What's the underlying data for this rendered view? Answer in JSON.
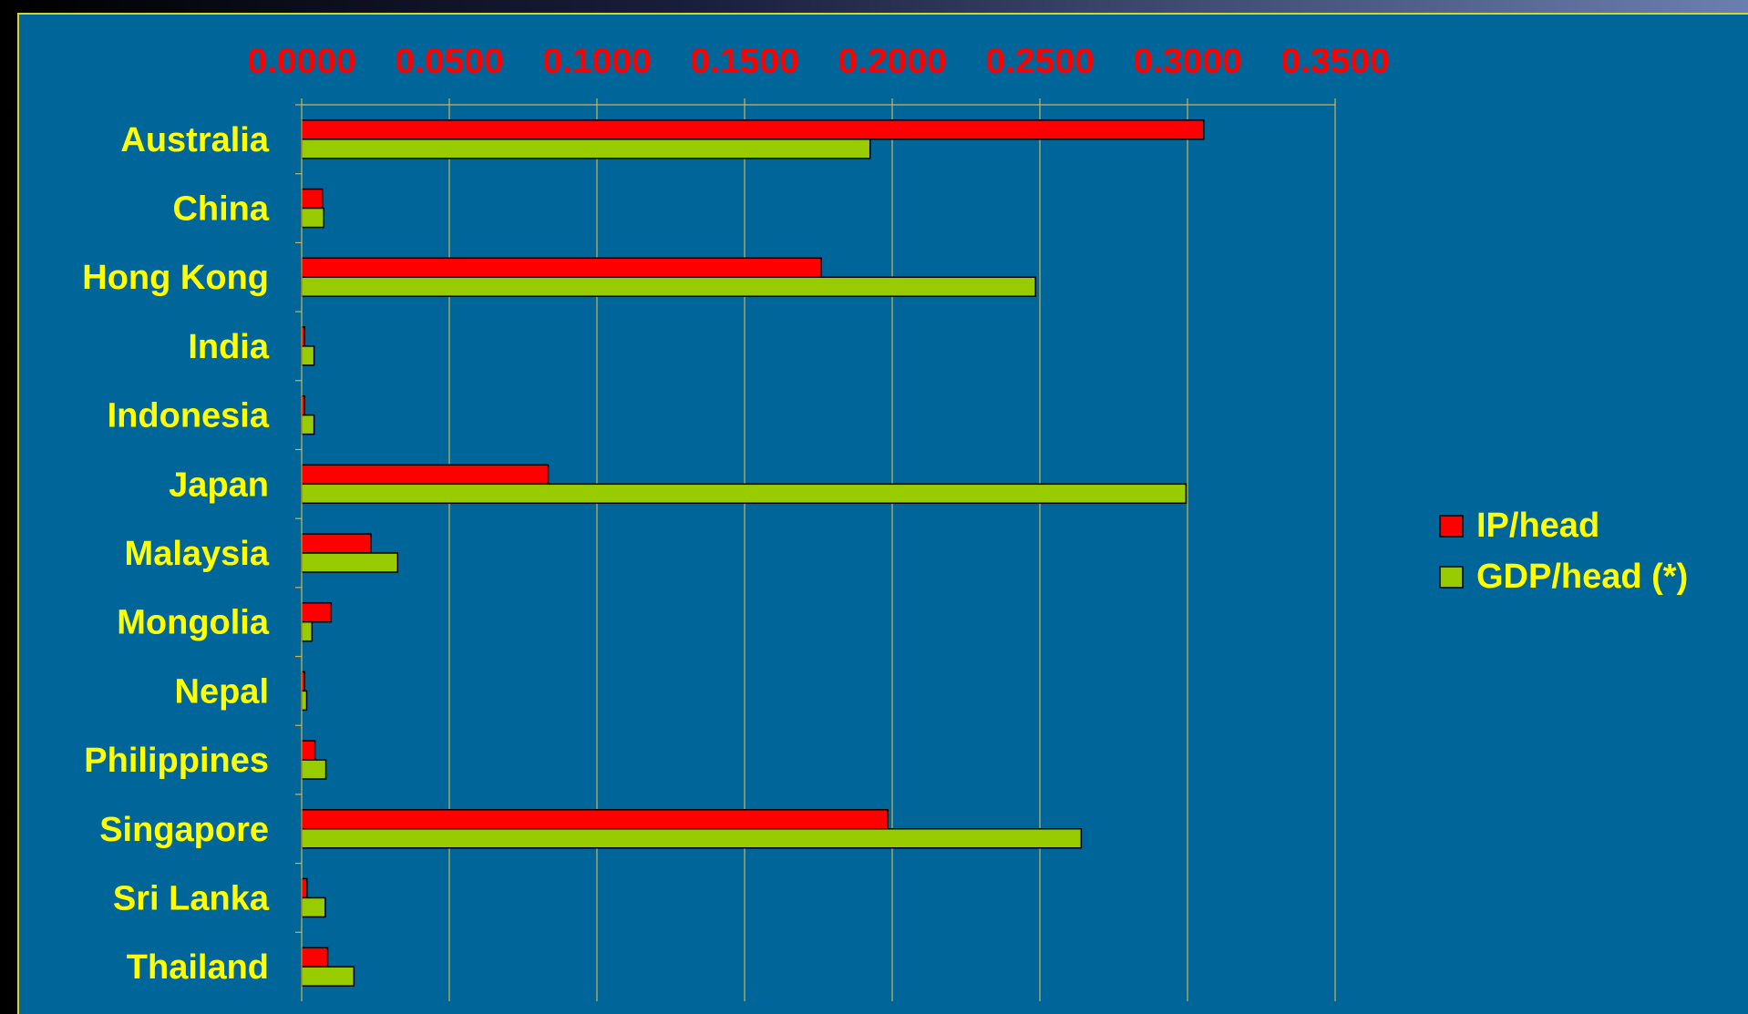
{
  "chart_data": {
    "type": "bar",
    "orientation": "horizontal",
    "categories": [
      "Australia",
      "China",
      "Hong Kong",
      "India",
      "Indonesia",
      "Japan",
      "Malaysia",
      "Mongolia",
      "Nepal",
      "Philippines",
      "Singapore",
      "Sri Lanka",
      "Thailand"
    ],
    "series": [
      {
        "name": "IP/head",
        "color": "#ff0000",
        "values": [
          0.3055,
          0.007,
          0.176,
          0.001,
          0.001,
          0.0835,
          0.0235,
          0.01,
          0.001,
          0.0045,
          0.1985,
          0.0018,
          0.0088
        ]
      },
      {
        "name": "GDP/head (*)",
        "color": "#99cc00",
        "values": [
          0.1925,
          0.0075,
          0.2485,
          0.0042,
          0.0042,
          0.2995,
          0.0325,
          0.0035,
          0.0017,
          0.0082,
          0.264,
          0.008,
          0.0177
        ]
      }
    ],
    "x_ticks": [
      "0.0000",
      "0.0500",
      "0.1000",
      "0.1500",
      "0.2000",
      "0.2500",
      "0.3000",
      "0.3500"
    ],
    "xlim": [
      0,
      0.35
    ],
    "axis_position": "top",
    "grid": "vertical",
    "legend_position": "right"
  }
}
